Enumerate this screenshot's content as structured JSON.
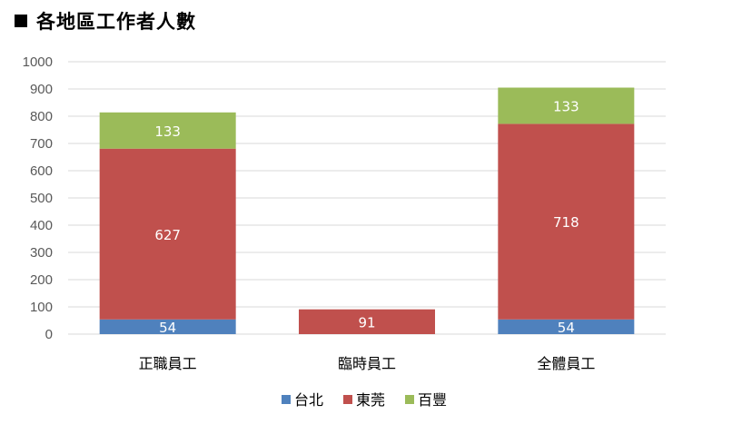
{
  "chart_data": {
    "type": "bar",
    "stacked": true,
    "title": "各地區工作者人數",
    "categories": [
      "正職員工",
      "臨時員工",
      "全體員工"
    ],
    "series": [
      {
        "name": "台北",
        "values": [
          54,
          0,
          54
        ],
        "color": "#4F81BD"
      },
      {
        "name": "東莞",
        "values": [
          627,
          91,
          718
        ],
        "color": "#C0504D"
      },
      {
        "name": "百豐",
        "values": [
          133,
          0,
          133
        ],
        "color": "#9BBB59"
      }
    ],
    "data_labels": [
      [
        "54",
        "",
        "54"
      ],
      [
        "627",
        "91",
        "718"
      ],
      [
        "133",
        "",
        "133"
      ]
    ],
    "ylim": [
      0,
      1000
    ],
    "yticks": [
      "0",
      "100",
      "200",
      "300",
      "400",
      "500",
      "600",
      "700",
      "800",
      "900",
      "1000"
    ],
    "grid": true,
    "legend_position": "bottom",
    "gridline_color": "#D9D9D9"
  }
}
